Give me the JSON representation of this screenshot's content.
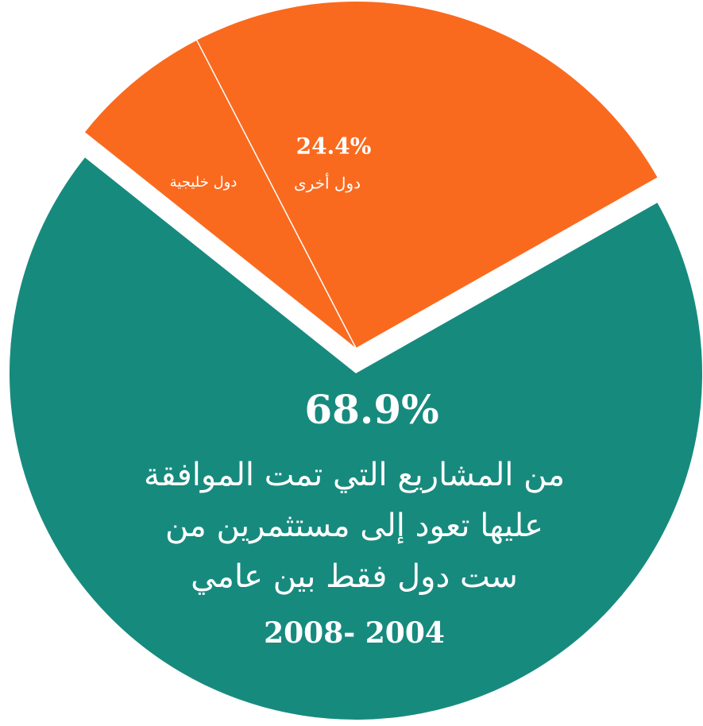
{
  "chart_data": {
    "type": "pie",
    "categories": [
      null,
      "دول خليجية",
      "دول أخرى"
    ],
    "values": [
      68.9,
      6.7,
      24.4
    ],
    "value_labels": [
      "68.9%",
      null,
      "24.4%"
    ],
    "colors": [
      "#178a7e",
      "#fa6a1e",
      "#fa6a1e"
    ],
    "annotation": [
      "من المشاريع التي تمت الموافقة",
      "عليها تعود إلى مستثمرين من",
      "ست دول فقط بين عامي",
      "2008- 2004"
    ]
  }
}
